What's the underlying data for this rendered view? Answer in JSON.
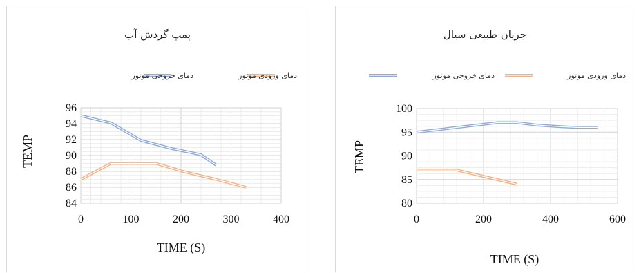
{
  "chart_data": [
    {
      "type": "line",
      "title": "پمپ گردش آب",
      "xlabel": "TIME (S)",
      "ylabel": "TEMP",
      "xlim": [
        0,
        400
      ],
      "ylim": [
        84,
        96
      ],
      "xticks": [
        0,
        100,
        200,
        300,
        400
      ],
      "yticks": [
        84,
        86,
        88,
        90,
        92,
        94,
        96
      ],
      "legend_position": "top",
      "grid": true,
      "series": [
        {
          "name": "دمای خروجی موتور",
          "color": "#8faadc",
          "x": [
            0,
            60,
            120,
            180,
            240,
            270
          ],
          "y": [
            95.0,
            94.1,
            91.9,
            90.9,
            90.1,
            88.8
          ]
        },
        {
          "name": "دمای ورودی موتور",
          "color": "#f4b183",
          "x": [
            0,
            60,
            90,
            150,
            210,
            270,
            330
          ],
          "y": [
            87.0,
            89.0,
            89.0,
            89.0,
            87.9,
            87.0,
            86.0
          ]
        }
      ]
    },
    {
      "type": "line",
      "title": "جریان طبیعی سیال",
      "xlabel": "TIME (S)",
      "ylabel": "TEMP",
      "xlim": [
        0,
        600
      ],
      "ylim": [
        80,
        100
      ],
      "xticks": [
        0,
        200,
        400,
        600
      ],
      "yticks": [
        80,
        85,
        90,
        95,
        100
      ],
      "legend_position": "top",
      "grid": true,
      "series": [
        {
          "name": "دمای خروجی موتور",
          "color": "#8faadc",
          "x": [
            0,
            120,
            240,
            300,
            360,
            420,
            480,
            540
          ],
          "y": [
            95.0,
            96.0,
            97.0,
            97.0,
            96.5,
            96.2,
            96.0,
            96.0
          ]
        },
        {
          "name": "دمای ورودی موتور",
          "color": "#f4b183",
          "x": [
            0,
            60,
            120,
            180,
            240,
            300
          ],
          "y": [
            87.0,
            87.0,
            87.0,
            86.0,
            85.0,
            84.0
          ]
        }
      ]
    }
  ]
}
